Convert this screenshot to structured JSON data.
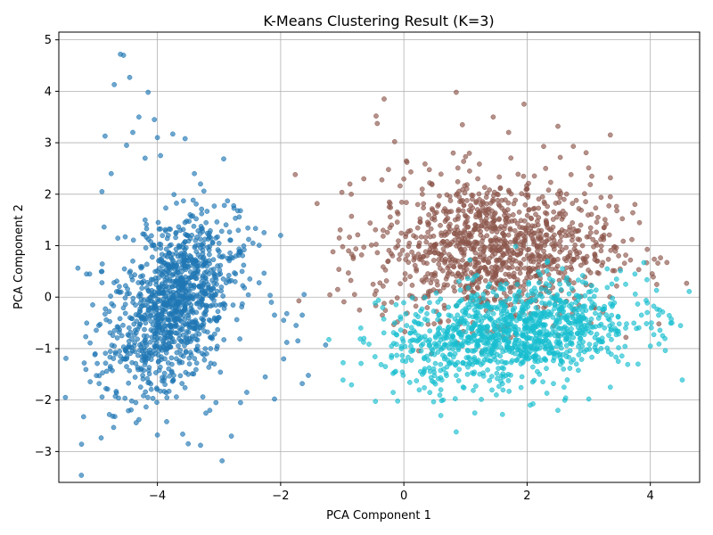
{
  "chart_data": {
    "type": "scatter",
    "title": "K-Means Clustering Result (K=3)",
    "xlabel": "PCA Component 1",
    "ylabel": "PCA Component 2",
    "xlim": [
      -5.6,
      4.8
    ],
    "ylim": [
      -3.6,
      5.15
    ],
    "xticks": [
      -4,
      -2,
      0,
      2,
      4
    ],
    "yticks": [
      -3,
      -2,
      -1,
      0,
      1,
      2,
      3,
      4,
      5
    ],
    "grid": true,
    "marker_opacity": 0.65,
    "series": [
      {
        "color": "#1f77b4",
        "points": [
          [
            -4.6,
            4.72
          ],
          [
            -4.55,
            4.7
          ],
          [
            -4.45,
            4.27
          ],
          [
            -4.7,
            4.13
          ],
          [
            -4.15,
            3.98
          ],
          [
            -4.3,
            3.5
          ],
          [
            -4.05,
            3.45
          ],
          [
            -3.55,
            3.08
          ],
          [
            -4.85,
            3.13
          ],
          [
            -4.4,
            3.2
          ],
          [
            -4.0,
            3.1
          ],
          [
            -3.75,
            3.17
          ],
          [
            -4.5,
            2.95
          ],
          [
            -4.2,
            2.7
          ],
          [
            -3.95,
            2.75
          ],
          [
            -4.75,
            2.4
          ],
          [
            -3.4,
            2.4
          ],
          [
            -4.9,
            2.05
          ],
          [
            -3.3,
            2.2
          ],
          [
            -3.05,
            1.15
          ],
          [
            -2.45,
            1.05
          ],
          [
            -2.0,
            1.2
          ],
          [
            -2.6,
            0.62
          ],
          [
            -2.35,
            0.28
          ],
          [
            -2.15,
            -0.1
          ],
          [
            -1.95,
            -0.45
          ],
          [
            -2.1,
            -0.35
          ],
          [
            -1.9,
            -0.32
          ],
          [
            -1.62,
            0.05
          ],
          [
            -1.65,
            -0.35
          ],
          [
            -1.75,
            -0.55
          ],
          [
            -1.9,
            -0.88
          ],
          [
            -1.72,
            -0.85
          ],
          [
            -1.27,
            -0.93
          ],
          [
            -1.95,
            -1.2
          ],
          [
            -1.55,
            -1.52
          ],
          [
            -1.65,
            -1.68
          ],
          [
            -2.25,
            -1.55
          ],
          [
            -2.55,
            -1.85
          ],
          [
            -2.1,
            -1.98
          ],
          [
            -2.65,
            -2.05
          ],
          [
            -3.05,
            -2.05
          ],
          [
            -3.15,
            -2.2
          ],
          [
            -3.5,
            -2.85
          ],
          [
            -3.3,
            -2.88
          ],
          [
            -2.8,
            -2.7
          ],
          [
            -2.95,
            -3.18
          ],
          [
            -3.85,
            -2.42
          ],
          [
            -4.0,
            -2.68
          ],
          [
            -4.3,
            -2.38
          ],
          [
            -4.35,
            -2.05
          ],
          [
            -4.7,
            -0.95
          ],
          [
            -5.05,
            -0.15
          ],
          [
            -5.15,
            0.45
          ],
          [
            -5.1,
            0.45
          ],
          [
            -4.9,
            0.28
          ],
          [
            -4.95,
            -0.55
          ],
          [
            -4.5,
            -1.35
          ],
          [
            -4.6,
            -1.15
          ],
          [
            -3.6,
            0.5
          ],
          [
            -3.9,
            0.1
          ],
          [
            -3.7,
            -0.3
          ],
          [
            -4.0,
            -0.8
          ],
          [
            -3.4,
            -0.6
          ],
          [
            -3.2,
            -1.1
          ],
          [
            -4.2,
            1.5
          ],
          [
            -3.8,
            1.0
          ],
          [
            -4.4,
            0.7
          ],
          [
            -3.5,
            -1.5
          ],
          [
            -3.0,
            -0.4
          ]
        ],
        "cloud": {
          "center": [
            -3.75,
            -0.15
          ],
          "spread": [
            0.45,
            0.9
          ],
          "rotation": -0.35,
          "count": 1100
        }
      },
      {
        "color": "#8c564b",
        "points": [
          [
            0.85,
            3.98
          ],
          [
            1.95,
            3.75
          ],
          [
            -0.32,
            3.85
          ],
          [
            -0.45,
            3.52
          ],
          [
            1.45,
            3.5
          ],
          [
            2.5,
            3.32
          ],
          [
            3.35,
            3.15
          ],
          [
            0.95,
            3.35
          ],
          [
            1.7,
            3.2
          ],
          [
            2.75,
            2.93
          ],
          [
            -0.15,
            3.02
          ],
          [
            0.05,
            2.62
          ],
          [
            -0.65,
            2.3
          ],
          [
            -0.25,
            2.48
          ],
          [
            3.05,
            2.35
          ],
          [
            3.35,
            1.95
          ],
          [
            3.75,
            1.8
          ],
          [
            3.15,
            1.55
          ],
          [
            3.7,
            1.12
          ],
          [
            -0.85,
            1.57
          ],
          [
            -1.05,
            1.15
          ],
          [
            -1.15,
            0.88
          ],
          [
            -0.65,
            0.97
          ],
          [
            -0.9,
            0.47
          ],
          [
            -0.8,
            0.05
          ],
          [
            -0.72,
            -0.25
          ],
          [
            -0.35,
            -0.35
          ],
          [
            -0.5,
            0.25
          ],
          [
            0.1,
            0.4
          ],
          [
            0.5,
            1.5
          ],
          [
            1.2,
            2.3
          ],
          [
            2.0,
            2.1
          ],
          [
            2.6,
            1.9
          ],
          [
            2.9,
            1.0
          ],
          [
            1.5,
            0.5
          ],
          [
            0.3,
            2.0
          ],
          [
            2.3,
            2.5
          ],
          [
            3.2,
            0.9
          ],
          [
            0.8,
            2.8
          ],
          [
            -0.2,
            1.4
          ]
        ],
        "cloud": {
          "center": [
            1.45,
            0.95
          ],
          "spread": [
            0.95,
            0.68
          ],
          "rotation": 0.0,
          "count": 1100
        }
      },
      {
        "color": "#17becf",
        "points": [
          [
            0.85,
            -2.62
          ],
          [
            0.6,
            -2.3
          ],
          [
            1.15,
            -2.25
          ],
          [
            1.6,
            -2.28
          ],
          [
            2.5,
            -2.2
          ],
          [
            2.05,
            -2.1
          ],
          [
            3.0,
            -1.98
          ],
          [
            3.35,
            -1.75
          ],
          [
            3.8,
            -1.3
          ],
          [
            4.0,
            -0.95
          ],
          [
            4.2,
            -0.75
          ],
          [
            4.35,
            -0.5
          ],
          [
            4.15,
            -0.25
          ],
          [
            3.95,
            -0.3
          ],
          [
            3.75,
            0.45
          ],
          [
            3.6,
            0.25
          ],
          [
            3.3,
            0.55
          ],
          [
            3.45,
            0.35
          ],
          [
            -0.1,
            -2.02
          ],
          [
            -0.3,
            -1.35
          ],
          [
            -0.2,
            -0.95
          ],
          [
            -0.7,
            -0.6
          ],
          [
            -0.15,
            -0.5
          ],
          [
            0.3,
            -1.5
          ],
          [
            0.6,
            -1.8
          ],
          [
            1.0,
            -1.3
          ],
          [
            2.2,
            -1.5
          ],
          [
            2.8,
            -1.3
          ],
          [
            3.2,
            -1.0
          ],
          [
            3.6,
            -0.6
          ],
          [
            0.1,
            -0.7
          ],
          [
            0.5,
            -0.9
          ],
          [
            1.5,
            -1.9
          ],
          [
            2.6,
            -1.75
          ],
          [
            3.0,
            0.1
          ]
        ],
        "cloud": {
          "center": [
            1.75,
            -0.7
          ],
          "spread": [
            1.0,
            0.46
          ],
          "rotation": 0.18,
          "count": 1100
        }
      }
    ]
  }
}
